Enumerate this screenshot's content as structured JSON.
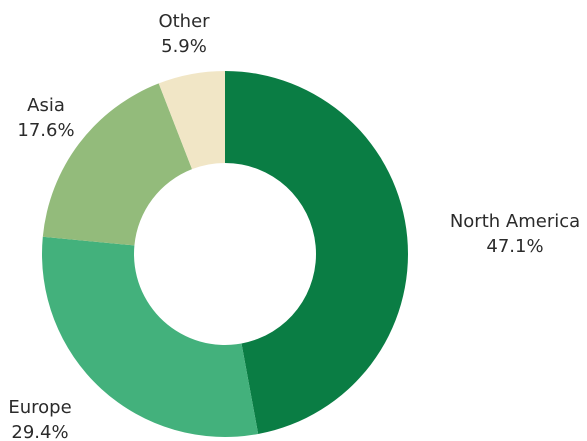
{
  "chart_data": {
    "type": "pie",
    "title": "",
    "categories": [
      "North America",
      "Europe",
      "Asia",
      "Other"
    ],
    "values": [
      47.1,
      29.4,
      17.6,
      5.9
    ],
    "value_labels": [
      "47.1%",
      "29.4%",
      "17.6%",
      "5.9%"
    ],
    "colors": [
      "#0a7d44",
      "#43b17c",
      "#93bb7b",
      "#f1e6c6"
    ],
    "donut": true,
    "start_angle_deg": 0,
    "direction": "clockwise",
    "legend": "none",
    "labels_position": "outside"
  }
}
